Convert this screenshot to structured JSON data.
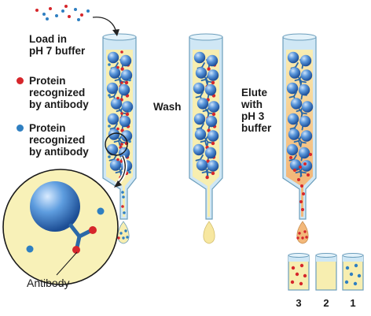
{
  "labels": {
    "load_line1": "Load in",
    "load_line2": "pH 7 buffer",
    "wash": "Wash",
    "elute_line1": "Elute",
    "elute_line2": "with",
    "elute_line3": "pH 3",
    "elute_line4": "buffer",
    "antibody": "Antibody"
  },
  "legend": [
    {
      "color": "#d6262b",
      "line1": "Protein",
      "line2": "recognized",
      "line3": "by antibody"
    },
    {
      "color": "#2f7fc1",
      "line1": "Protein",
      "line2": "recognized",
      "line3": "by antibody"
    }
  ],
  "tube_numbers": [
    "3",
    "2",
    "1"
  ],
  "colors": {
    "red_protein": "#d6262b",
    "blue_protein": "#2f7fc1",
    "bead_blue": "#4f8ed6",
    "column_yellow": "#f7eeb0",
    "column_orange": "#f5c88a",
    "glass_blue": "#bfe0f2",
    "antibody_blue": "#2a68a8"
  }
}
